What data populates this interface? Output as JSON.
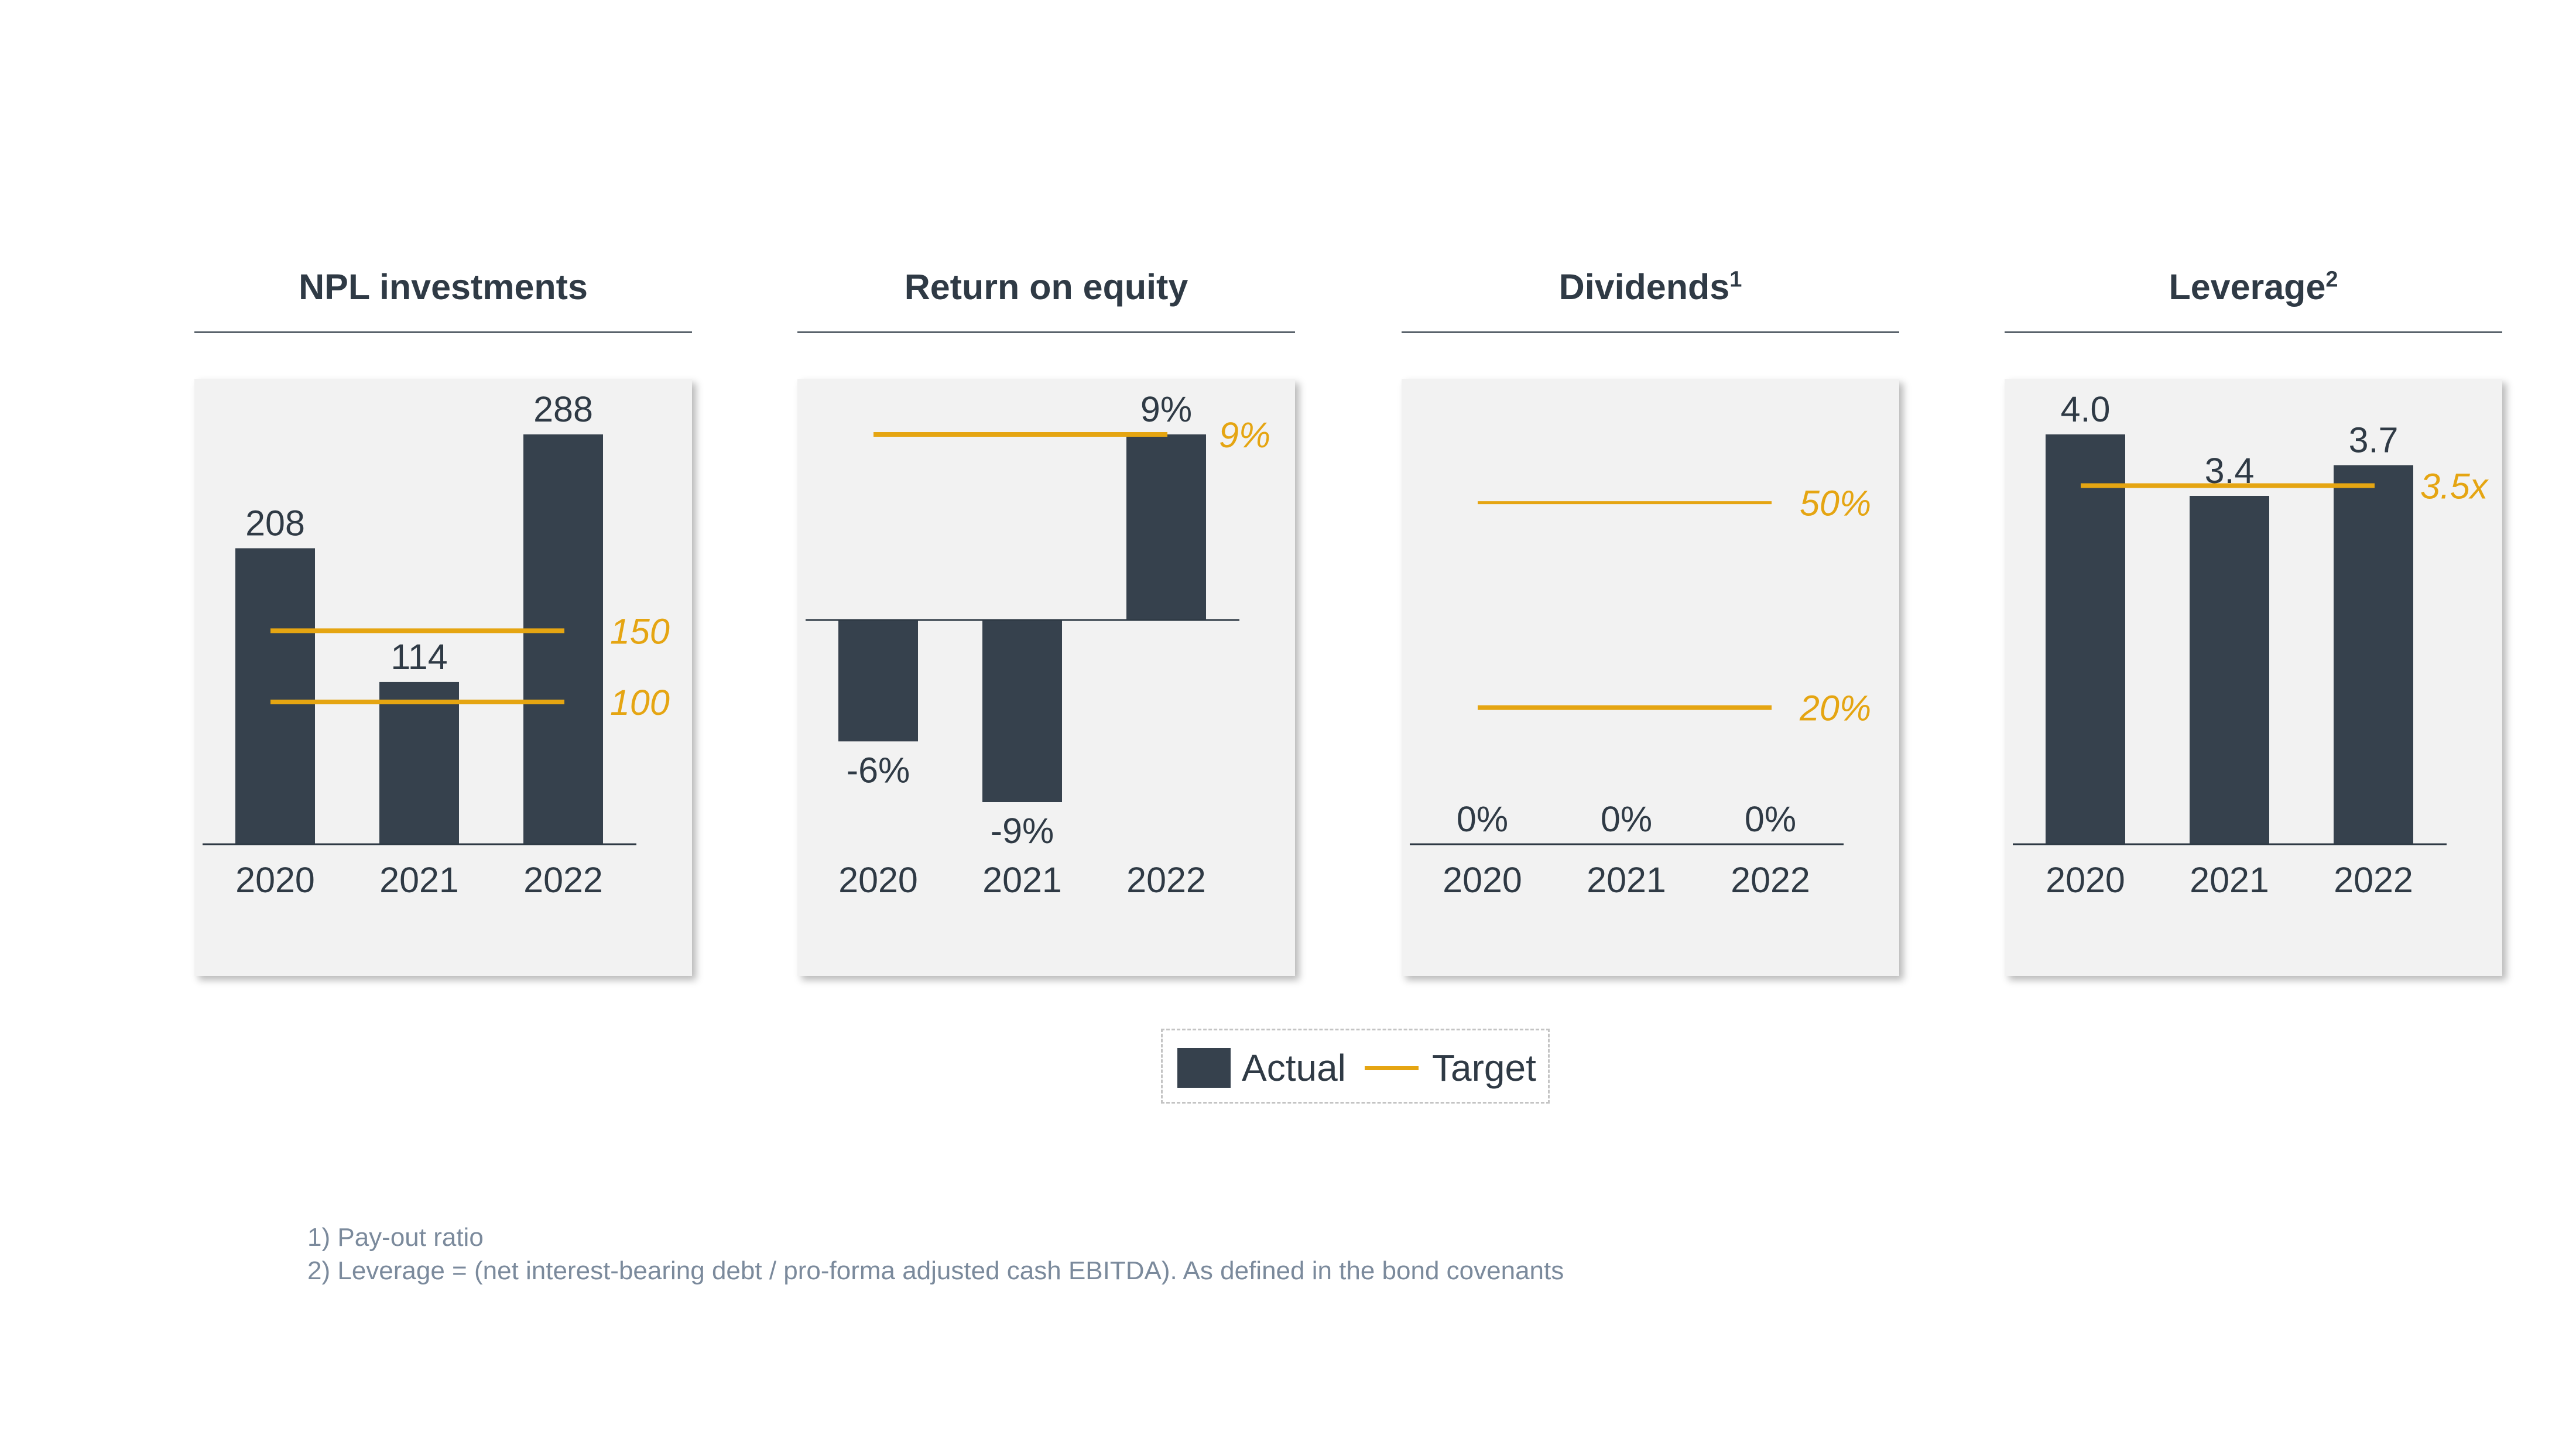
{
  "colors": {
    "actual": "#36414d",
    "target": "#e5a512",
    "text": "#2f3a45",
    "panel": "#f2f2f2",
    "footnote": "#7b8a9c"
  },
  "legend": {
    "actual": "Actual",
    "target": "Target"
  },
  "footnotes": [
    "1) Pay-out ratio",
    "2) Leverage = (net interest-bearing debt / pro-forma adjusted cash EBITDA). As defined in the bond covenants"
  ],
  "chart_data": [
    {
      "type": "bar",
      "title": "NPL investments",
      "title_sup": "",
      "categories": [
        "2020",
        "2021",
        "2022"
      ],
      "values": [
        208,
        114,
        288
      ],
      "labels": [
        "208",
        "114",
        "288"
      ],
      "ylim": [
        0,
        288
      ],
      "targets": [
        {
          "value": 150,
          "label": "150"
        },
        {
          "value": 100,
          "label": "100"
        }
      ]
    },
    {
      "type": "bar",
      "title": "Return on equity",
      "title_sup": "",
      "categories": [
        "2020",
        "2021",
        "2022"
      ],
      "values": [
        -6,
        -9,
        9
      ],
      "labels": [
        "-6%",
        "-9%",
        "9%"
      ],
      "ylim": [
        -9,
        9
      ],
      "targets": [
        {
          "value": 9,
          "label": "9%"
        }
      ]
    },
    {
      "type": "bar",
      "title": "Dividends",
      "title_sup": "1",
      "categories": [
        "2020",
        "2021",
        "2022"
      ],
      "values": [
        0,
        0,
        0
      ],
      "labels": [
        "0%",
        "0%",
        "0%"
      ],
      "ylim": [
        0,
        60
      ],
      "targets": [
        {
          "value": 50,
          "label": "50%"
        },
        {
          "value": 20,
          "label": "20%"
        }
      ]
    },
    {
      "type": "bar",
      "title": "Leverage",
      "title_sup": "2",
      "categories": [
        "2020",
        "2021",
        "2022"
      ],
      "values": [
        4.0,
        3.4,
        3.7
      ],
      "labels": [
        "4.0",
        "3.4",
        "3.7"
      ],
      "ylim": [
        0,
        4.0
      ],
      "targets": [
        {
          "value": 3.5,
          "label": "3.5x"
        }
      ]
    }
  ]
}
